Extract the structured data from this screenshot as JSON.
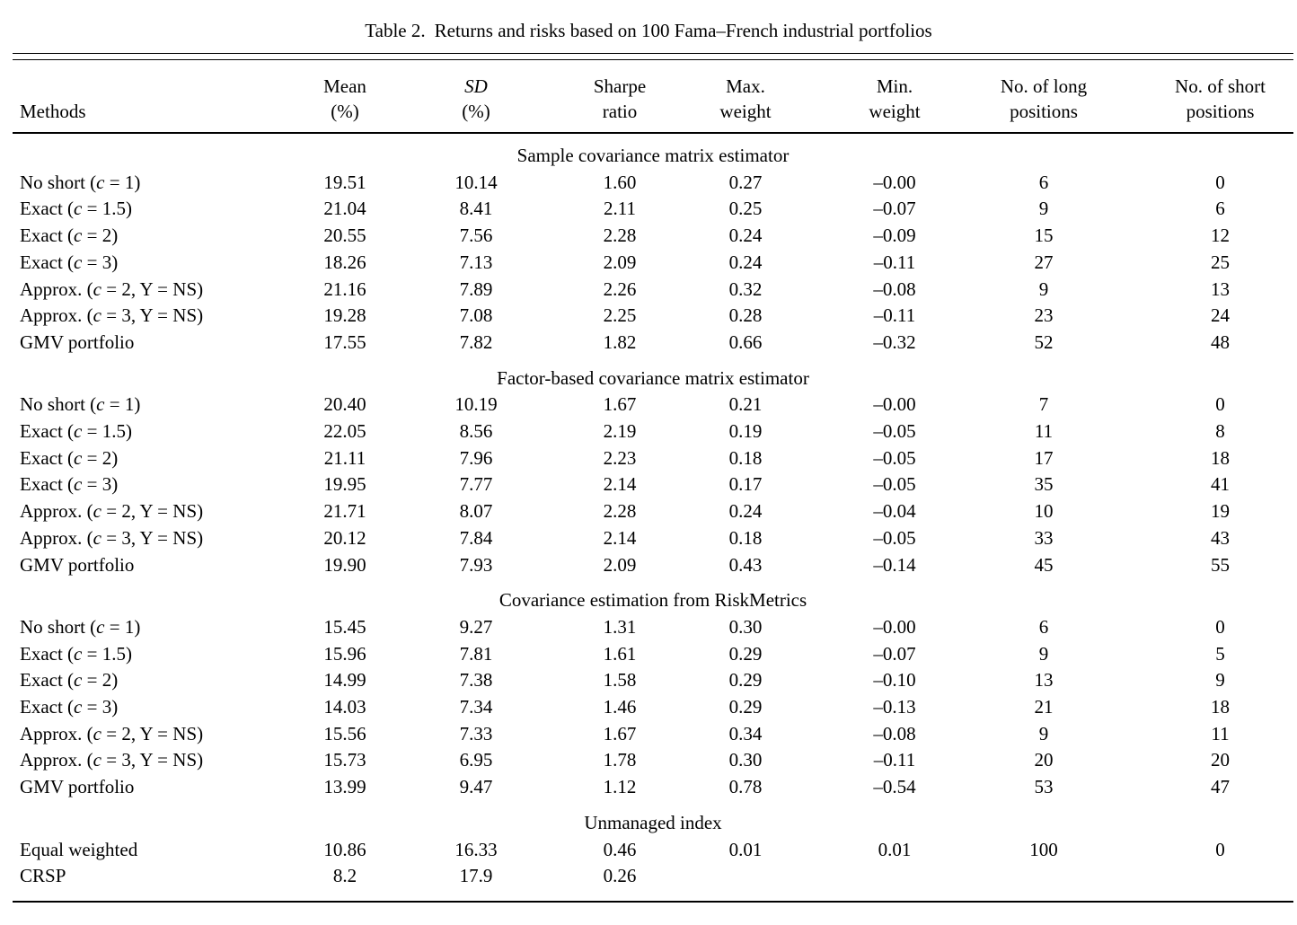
{
  "page": {
    "background": "#ffffff",
    "text_color": "#000000"
  },
  "caption": {
    "label": "Table 2.",
    "text": "Returns and risks based on 100 Fama–French industrial portfolios"
  },
  "table": {
    "columns": [
      {
        "line1": "",
        "line2": "Methods"
      },
      {
        "line1": "Mean",
        "line2": "(%)"
      },
      {
        "line1": "SD",
        "line2": "(%)"
      },
      {
        "line1": "Sharpe",
        "line2": "ratio"
      },
      {
        "line1": "Max.",
        "line2": "weight"
      },
      {
        "line1": "Min.",
        "line2": "weight"
      },
      {
        "line1": "No. of long",
        "line2": "positions"
      },
      {
        "line1": "No. of short",
        "line2": "positions"
      }
    ],
    "sections": [
      {
        "header": "Sample covariance matrix estimator",
        "rows": [
          {
            "method": "No short (c = 1)",
            "values": [
              "19.51",
              "10.14",
              "1.60",
              "0.27",
              "–0.00",
              "6",
              "0"
            ]
          },
          {
            "method": "Exact (c = 1.5)",
            "values": [
              "21.04",
              "8.41",
              "2.11",
              "0.25",
              "–0.07",
              "9",
              "6"
            ]
          },
          {
            "method": "Exact (c = 2)",
            "values": [
              "20.55",
              "7.56",
              "2.28",
              "0.24",
              "–0.09",
              "15",
              "12"
            ]
          },
          {
            "method": "Exact (c = 3)",
            "values": [
              "18.26",
              "7.13",
              "2.09",
              "0.24",
              "–0.11",
              "27",
              "25"
            ]
          },
          {
            "method": "Approx. (c = 2, Y = NS)",
            "values": [
              "21.16",
              "7.89",
              "2.26",
              "0.32",
              "–0.08",
              "9",
              "13"
            ]
          },
          {
            "method": "Approx. (c = 3, Y = NS)",
            "values": [
              "19.28",
              "7.08",
              "2.25",
              "0.28",
              "–0.11",
              "23",
              "24"
            ]
          },
          {
            "method": "GMV portfolio",
            "values": [
              "17.55",
              "7.82",
              "1.82",
              "0.66",
              "–0.32",
              "52",
              "48"
            ]
          }
        ]
      },
      {
        "header": "Factor-based covariance matrix estimator",
        "rows": [
          {
            "method": "No short (c = 1)",
            "values": [
              "20.40",
              "10.19",
              "1.67",
              "0.21",
              "–0.00",
              "7",
              "0"
            ]
          },
          {
            "method": "Exact (c = 1.5)",
            "values": [
              "22.05",
              "8.56",
              "2.19",
              "0.19",
              "–0.05",
              "11",
              "8"
            ]
          },
          {
            "method": "Exact (c = 2)",
            "values": [
              "21.11",
              "7.96",
              "2.23",
              "0.18",
              "–0.05",
              "17",
              "18"
            ]
          },
          {
            "method": "Exact (c = 3)",
            "values": [
              "19.95",
              "7.77",
              "2.14",
              "0.17",
              "–0.05",
              "35",
              "41"
            ]
          },
          {
            "method": "Approx. (c = 2, Y = NS)",
            "values": [
              "21.71",
              "8.07",
              "2.28",
              "0.24",
              "–0.04",
              "10",
              "19"
            ]
          },
          {
            "method": "Approx. (c = 3, Y = NS)",
            "values": [
              "20.12",
              "7.84",
              "2.14",
              "0.18",
              "–0.05",
              "33",
              "43"
            ]
          },
          {
            "method": "GMV portfolio",
            "values": [
              "19.90",
              "7.93",
              "2.09",
              "0.43",
              "–0.14",
              "45",
              "55"
            ]
          }
        ]
      },
      {
        "header": "Covariance estimation from RiskMetrics",
        "rows": [
          {
            "method": "No short (c = 1)",
            "values": [
              "15.45",
              "9.27",
              "1.31",
              "0.30",
              "–0.00",
              "6",
              "0"
            ]
          },
          {
            "method": "Exact (c = 1.5)",
            "values": [
              "15.96",
              "7.81",
              "1.61",
              "0.29",
              "–0.07",
              "9",
              "5"
            ]
          },
          {
            "method": "Exact (c = 2)",
            "values": [
              "14.99",
              "7.38",
              "1.58",
              "0.29",
              "–0.10",
              "13",
              "9"
            ]
          },
          {
            "method": "Exact (c = 3)",
            "values": [
              "14.03",
              "7.34",
              "1.46",
              "0.29",
              "–0.13",
              "21",
              "18"
            ]
          },
          {
            "method": "Approx. (c = 2, Y = NS)",
            "values": [
              "15.56",
              "7.33",
              "1.67",
              "0.34",
              "–0.08",
              "9",
              "11"
            ]
          },
          {
            "method": "Approx. (c = 3, Y = NS)",
            "values": [
              "15.73",
              "6.95",
              "1.78",
              "0.30",
              "–0.11",
              "20",
              "20"
            ]
          },
          {
            "method": "GMV portfolio",
            "values": [
              "13.99",
              "9.47",
              "1.12",
              "0.78",
              "–0.54",
              "53",
              "47"
            ]
          }
        ]
      },
      {
        "header": "Unmanaged index",
        "rows": [
          {
            "method": "Equal weighted",
            "values": [
              "10.86",
              "16.33",
              "0.46",
              "0.01",
              "0.01",
              "100",
              "0"
            ]
          },
          {
            "method": "CRSP",
            "values": [
              "8.2",
              "17.9",
              "0.26",
              "",
              "",
              "",
              ""
            ]
          }
        ]
      }
    ]
  }
}
